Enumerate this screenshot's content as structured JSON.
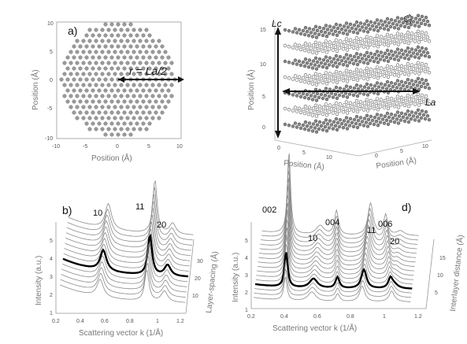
{
  "panels": {
    "a": {
      "label": "a)",
      "xlabel": "Position (Å)",
      "ylabel": "Position (Å)",
      "xticks": [
        "-10",
        "-5",
        "0",
        "5",
        "10"
      ],
      "yticks": [
        "10",
        "5",
        "0",
        "-5",
        "-10"
      ],
      "annotation": "r = La/2"
    },
    "b": {
      "label": "b)",
      "xlabel": "Scattering vector k (1/Å)",
      "ylabel": "Intensity (a.u.)",
      "zlabel": "Layer-spacing (Å)",
      "xticks": [
        "0.2",
        "0.4",
        "0.6",
        "0.8",
        "1",
        "1.2"
      ],
      "yticks": [
        "1",
        "2",
        "3",
        "4",
        "5"
      ],
      "zticks": [
        "10",
        "20",
        "30"
      ],
      "peaks": [
        "10",
        "11",
        "20"
      ]
    },
    "c": {
      "label": "c)",
      "ylabel": "Position (Å)",
      "xlabel_left": "Position (Å)",
      "xlabel_right": "Position (Å)",
      "yticks": [
        "15",
        "10",
        "5",
        "0"
      ],
      "xticks_left": [
        "0",
        "5",
        "10"
      ],
      "xticks_right": [
        "0",
        "5",
        "10"
      ],
      "lc_label": "Lc",
      "la_label": "La"
    },
    "d": {
      "label": "d)",
      "xlabel": "Scattering vector k (1/Å)",
      "ylabel": "Intensity (a.u.)",
      "zlabel": "Interlayer distance (Å)",
      "xticks": [
        "0.2",
        "0.4",
        "0.6",
        "0.8",
        "1",
        "1.2"
      ],
      "yticks": [
        "1",
        "2",
        "3",
        "4",
        "5"
      ],
      "zticks": [
        "5",
        "10",
        "15"
      ],
      "peaks": [
        "002",
        "10",
        "004",
        "11",
        "006",
        "20"
      ]
    }
  }
}
